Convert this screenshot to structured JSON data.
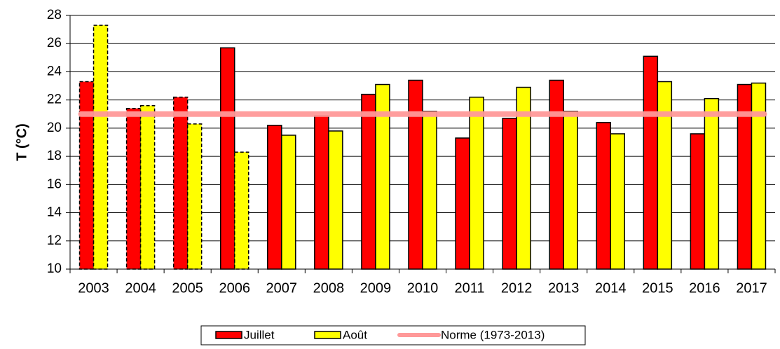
{
  "chart_data": {
    "type": "bar",
    "y_label": "T (°C)",
    "categories": [
      "2003",
      "2004",
      "2005",
      "2006",
      "2007",
      "2008",
      "2009",
      "2010",
      "2011",
      "2012",
      "2013",
      "2014",
      "2015",
      "2016",
      "2017"
    ],
    "series": [
      {
        "name": "Juillet",
        "color": "#ff0000",
        "values": [
          23.3,
          21.4,
          22.2,
          25.7,
          20.2,
          20.9,
          22.4,
          23.4,
          19.3,
          20.7,
          23.4,
          20.4,
          25.1,
          19.6,
          23.1
        ],
        "dashed": [
          true,
          true,
          true,
          false,
          false,
          false,
          false,
          false,
          false,
          false,
          false,
          false,
          false,
          false,
          false
        ]
      },
      {
        "name": "Août",
        "color": "#ffff00",
        "values": [
          27.3,
          21.6,
          20.3,
          18.3,
          19.5,
          19.8,
          23.1,
          21.2,
          22.2,
          22.9,
          21.2,
          19.6,
          23.3,
          22.1,
          23.2
        ],
        "dashed": [
          true,
          true,
          true,
          true,
          false,
          false,
          false,
          false,
          false,
          false,
          false,
          false,
          false,
          false,
          false
        ]
      },
      {
        "name": "Norme (1973-2013)",
        "type": "line",
        "color": "#ff9999",
        "values": [
          21,
          21,
          21,
          21,
          21,
          21,
          21,
          21,
          21,
          21,
          21,
          21,
          21,
          21,
          21
        ]
      }
    ],
    "ylim": [
      10,
      28
    ],
    "yticks": [
      10,
      12,
      14,
      16,
      18,
      20,
      22,
      24,
      26,
      28
    ],
    "grid": true
  }
}
